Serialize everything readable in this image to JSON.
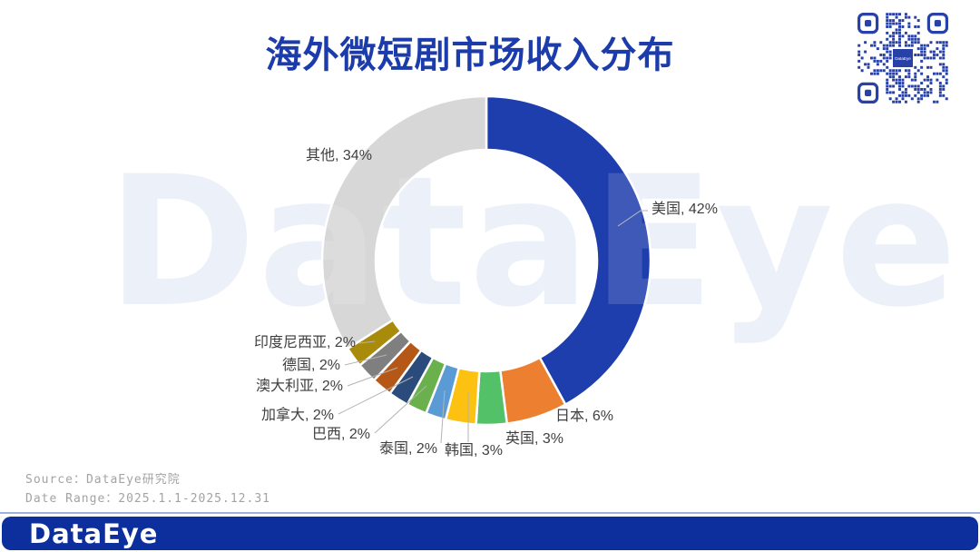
{
  "title": "海外微短剧市场收入分布",
  "watermark": {
    "text": "DataEye"
  },
  "qr_code": {
    "center_label": "DataEye"
  },
  "chart_data": {
    "type": "pie",
    "subtype": "donut",
    "title": "海外微短剧市场收入分布",
    "unit": "%",
    "legend_position": "none",
    "start_angle": "top",
    "direction": "clockwise",
    "label_format": "{label}, {value}%",
    "labels": [
      "美国",
      "日本",
      "英国",
      "韩国",
      "泰国",
      "巴西",
      "加拿大",
      "澳大利亚",
      "德国",
      "印度尼西亚",
      "其他"
    ],
    "values": [
      42,
      6,
      3,
      3,
      2,
      2,
      2,
      2,
      2,
      2,
      34
    ],
    "colors": [
      "#1f3ead",
      "#ec8030",
      "#53c168",
      "#fdc211",
      "#5b9bd5",
      "#6ab04c",
      "#2a4b7c",
      "#b55716",
      "#7f7f7f",
      "#a98b0c",
      "#d7d7d7"
    ]
  },
  "source": {
    "line1": "Source：DataEye研究院",
    "line2": "Date Range：2025.1.1-2025.12.31"
  },
  "footer": {
    "logo_text": "DataEye"
  },
  "colors": {
    "title": "#1d3cab",
    "footer_bar": "#0d2f9d",
    "qr": "#2741a6",
    "watermark": "#e9eff9",
    "label_text": "#3f3f3f",
    "source_text": "#a3a3a3",
    "divider": "#9db1dd"
  }
}
